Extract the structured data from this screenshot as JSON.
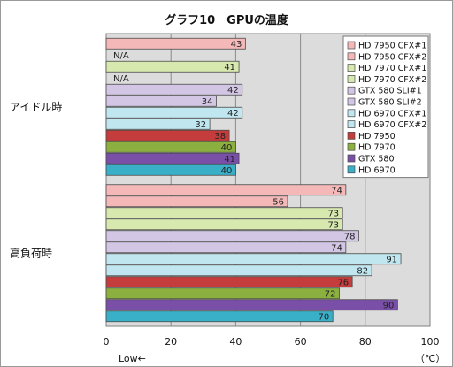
{
  "chart_data": {
    "type": "bar",
    "orientation": "horizontal",
    "title": "グラフ10　GPUの温度",
    "categories": [
      "アイドル時",
      "高負荷時"
    ],
    "series": [
      {
        "name": "HD 7950 CFX#1",
        "color": "#f4b8b8",
        "values": [
          43,
          74
        ]
      },
      {
        "name": "HD 7950 CFX#2",
        "color": "#f4b8b8",
        "values": [
          null,
          56
        ]
      },
      {
        "name": "HD 7970 CFX#1",
        "color": "#d8e9b0",
        "values": [
          41,
          73
        ]
      },
      {
        "name": "HD 7970 CFX#2",
        "color": "#d8e9b0",
        "values": [
          null,
          73
        ]
      },
      {
        "name": "GTX 580 SLI#1",
        "color": "#d2c6e4",
        "values": [
          42,
          78
        ]
      },
      {
        "name": "GTX 580 SLI#2",
        "color": "#d2c6e4",
        "values": [
          34,
          74
        ]
      },
      {
        "name": "HD 6970 CFX#1",
        "color": "#c0e6ef",
        "values": [
          42,
          91
        ]
      },
      {
        "name": "HD 6970 CFX#2",
        "color": "#c0e6ef",
        "values": [
          32,
          82
        ]
      },
      {
        "name": "HD 7950",
        "color": "#c43c3c",
        "values": [
          38,
          76
        ]
      },
      {
        "name": "HD 7970",
        "color": "#8cb040",
        "values": [
          40,
          72
        ]
      },
      {
        "name": "GTX 580",
        "color": "#7a4fa8",
        "values": [
          41,
          90
        ]
      },
      {
        "name": "HD 6970",
        "color": "#3ab0c8",
        "values": [
          40,
          70
        ]
      }
    ],
    "na_label": "N/A",
    "xlim": [
      0,
      100
    ],
    "xticks": [
      0,
      20,
      40,
      60,
      80,
      100
    ],
    "unit_label": "（℃）",
    "direction_label": "Low←",
    "grid": true,
    "legend_position": "top-right"
  }
}
